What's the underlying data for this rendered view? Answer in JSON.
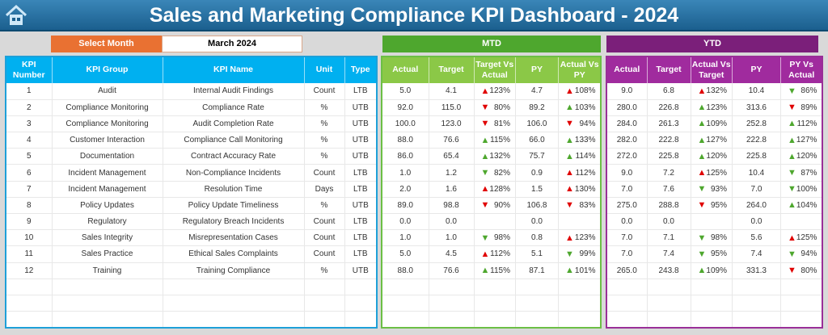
{
  "header": {
    "title": "Sales and Marketing Compliance KPI Dashboard - 2024",
    "home_icon": "home-icon"
  },
  "filter": {
    "label": "Select Month",
    "value": "March 2024"
  },
  "sections": {
    "mtd": "MTD",
    "ytd": "YTD"
  },
  "colors": {
    "title_bg": "#1b5f8e",
    "select_month": "#e97132",
    "kpi_header": "#00b0f0",
    "mtd": "#4ea72e",
    "mtd_header": "#8bc847",
    "ytd": "#7b1f7a",
    "ytd_header": "#a02b9e",
    "good": "#4ea72e",
    "bad": "#e00000"
  },
  "left_columns": [
    "KPI Number",
    "KPI Group",
    "KPI Name",
    "Unit",
    "Type"
  ],
  "mtd_columns": [
    "Actual",
    "Target",
    "Target Vs Actual",
    "PY",
    "Actual Vs PY"
  ],
  "ytd_columns": [
    "Actual",
    "Target",
    "Actual Vs Target",
    "PY",
    "PY Vs Actual"
  ],
  "rows": [
    {
      "num": "1",
      "group": "Audit",
      "name": "Internal Audit Findings",
      "unit": "Count",
      "type": "LTB",
      "mtd": [
        "5.0",
        "4.1",
        {
          "dir": "up",
          "status": "bad",
          "pct": "123%"
        },
        "4.7",
        {
          "dir": "up",
          "status": "bad",
          "pct": "108%"
        }
      ],
      "ytd": [
        "9.0",
        "6.8",
        {
          "dir": "up",
          "status": "bad",
          "pct": "132%"
        },
        "10.4",
        {
          "dir": "down",
          "status": "good",
          "pct": "86%"
        }
      ]
    },
    {
      "num": "2",
      "group": "Compliance Monitoring",
      "name": "Compliance Rate",
      "unit": "%",
      "type": "UTB",
      "mtd": [
        "92.0",
        "115.0",
        {
          "dir": "down",
          "status": "bad",
          "pct": "80%"
        },
        "89.2",
        {
          "dir": "up",
          "status": "good",
          "pct": "103%"
        }
      ],
      "ytd": [
        "280.0",
        "226.8",
        {
          "dir": "up",
          "status": "good",
          "pct": "123%"
        },
        "313.6",
        {
          "dir": "down",
          "status": "bad",
          "pct": "89%"
        }
      ]
    },
    {
      "num": "3",
      "group": "Compliance Monitoring",
      "name": "Audit Completion Rate",
      "unit": "%",
      "type": "UTB",
      "mtd": [
        "100.0",
        "123.0",
        {
          "dir": "down",
          "status": "bad",
          "pct": "81%"
        },
        "106.0",
        {
          "dir": "down",
          "status": "bad",
          "pct": "94%"
        }
      ],
      "ytd": [
        "284.0",
        "261.3",
        {
          "dir": "up",
          "status": "good",
          "pct": "109%"
        },
        "252.8",
        {
          "dir": "up",
          "status": "good",
          "pct": "112%"
        }
      ]
    },
    {
      "num": "4",
      "group": "Customer Interaction",
      "name": "Compliance Call Monitoring",
      "unit": "%",
      "type": "UTB",
      "mtd": [
        "88.0",
        "76.6",
        {
          "dir": "up",
          "status": "good",
          "pct": "115%"
        },
        "66.0",
        {
          "dir": "up",
          "status": "good",
          "pct": "133%"
        }
      ],
      "ytd": [
        "282.0",
        "222.8",
        {
          "dir": "up",
          "status": "good",
          "pct": "127%"
        },
        "222.8",
        {
          "dir": "up",
          "status": "good",
          "pct": "127%"
        }
      ]
    },
    {
      "num": "5",
      "group": "Documentation",
      "name": "Contract Accuracy Rate",
      "unit": "%",
      "type": "UTB",
      "mtd": [
        "86.0",
        "65.4",
        {
          "dir": "up",
          "status": "good",
          "pct": "132%"
        },
        "75.7",
        {
          "dir": "up",
          "status": "good",
          "pct": "114%"
        }
      ],
      "ytd": [
        "272.0",
        "225.8",
        {
          "dir": "up",
          "status": "good",
          "pct": "120%"
        },
        "225.8",
        {
          "dir": "up",
          "status": "good",
          "pct": "120%"
        }
      ]
    },
    {
      "num": "6",
      "group": "Incident Management",
      "name": "Non-Compliance Incidents",
      "unit": "Count",
      "type": "LTB",
      "mtd": [
        "1.0",
        "1.2",
        {
          "dir": "down",
          "status": "good",
          "pct": "82%"
        },
        "0.9",
        {
          "dir": "up",
          "status": "bad",
          "pct": "112%"
        }
      ],
      "ytd": [
        "9.0",
        "7.2",
        {
          "dir": "up",
          "status": "bad",
          "pct": "125%"
        },
        "10.4",
        {
          "dir": "down",
          "status": "good",
          "pct": "87%"
        }
      ]
    },
    {
      "num": "7",
      "group": "Incident Management",
      "name": "Resolution Time",
      "unit": "Days",
      "type": "LTB",
      "mtd": [
        "2.0",
        "1.6",
        {
          "dir": "up",
          "status": "bad",
          "pct": "128%"
        },
        "1.5",
        {
          "dir": "up",
          "status": "bad",
          "pct": "130%"
        }
      ],
      "ytd": [
        "7.0",
        "7.6",
        {
          "dir": "down",
          "status": "good",
          "pct": "93%"
        },
        "7.0",
        {
          "dir": "down",
          "status": "good",
          "pct": "100%"
        }
      ]
    },
    {
      "num": "8",
      "group": "Policy Updates",
      "name": "Policy Update Timeliness",
      "unit": "%",
      "type": "UTB",
      "mtd": [
        "89.0",
        "98.8",
        {
          "dir": "down",
          "status": "bad",
          "pct": "90%"
        },
        "106.8",
        {
          "dir": "down",
          "status": "bad",
          "pct": "83%"
        }
      ],
      "ytd": [
        "275.0",
        "288.8",
        {
          "dir": "down",
          "status": "bad",
          "pct": "95%"
        },
        "264.0",
        {
          "dir": "up",
          "status": "good",
          "pct": "104%"
        }
      ]
    },
    {
      "num": "9",
      "group": "Regulatory",
      "name": "Regulatory Breach Incidents",
      "unit": "Count",
      "type": "LTB",
      "mtd": [
        "0.0",
        "0.0",
        null,
        "0.0",
        null
      ],
      "ytd": [
        "0.0",
        "0.0",
        null,
        "0.0",
        null
      ]
    },
    {
      "num": "10",
      "group": "Sales Integrity",
      "name": "Misrepresentation Cases",
      "unit": "Count",
      "type": "LTB",
      "mtd": [
        "1.0",
        "1.0",
        {
          "dir": "down",
          "status": "good",
          "pct": "98%"
        },
        "0.8",
        {
          "dir": "up",
          "status": "bad",
          "pct": "123%"
        }
      ],
      "ytd": [
        "7.0",
        "7.1",
        {
          "dir": "down",
          "status": "good",
          "pct": "98%"
        },
        "5.6",
        {
          "dir": "up",
          "status": "bad",
          "pct": "125%"
        }
      ]
    },
    {
      "num": "11",
      "group": "Sales Practice",
      "name": "Ethical Sales Complaints",
      "unit": "Count",
      "type": "LTB",
      "mtd": [
        "5.0",
        "4.5",
        {
          "dir": "up",
          "status": "bad",
          "pct": "112%"
        },
        "5.1",
        {
          "dir": "down",
          "status": "good",
          "pct": "99%"
        }
      ],
      "ytd": [
        "7.0",
        "7.4",
        {
          "dir": "down",
          "status": "good",
          "pct": "95%"
        },
        "7.4",
        {
          "dir": "down",
          "status": "good",
          "pct": "94%"
        }
      ]
    },
    {
      "num": "12",
      "group": "Training",
      "name": "Training Compliance",
      "unit": "%",
      "type": "UTB",
      "mtd": [
        "88.0",
        "76.6",
        {
          "dir": "up",
          "status": "good",
          "pct": "115%"
        },
        "87.1",
        {
          "dir": "up",
          "status": "good",
          "pct": "101%"
        }
      ],
      "ytd": [
        "265.0",
        "243.8",
        {
          "dir": "up",
          "status": "good",
          "pct": "109%"
        },
        "331.3",
        {
          "dir": "down",
          "status": "bad",
          "pct": "80%"
        }
      ]
    }
  ]
}
